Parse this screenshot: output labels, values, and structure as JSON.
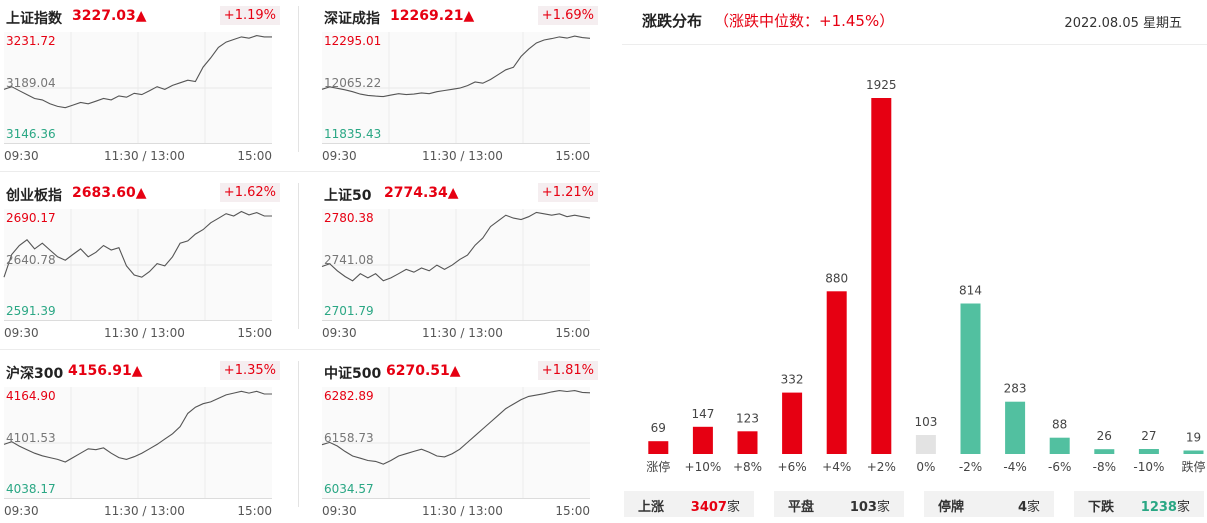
{
  "indices": [
    {
      "name": "上证指数",
      "price": "3227.03▲",
      "change": "+1.19%",
      "high": "3231.72",
      "mid": "3189.04",
      "low": "3146.36",
      "series": [
        3188,
        3190,
        3187,
        3184,
        3181,
        3180,
        3177,
        3175,
        3174,
        3176,
        3178,
        3177,
        3179,
        3181,
        3180,
        3183,
        3182,
        3185,
        3184,
        3187,
        3190,
        3188,
        3191,
        3193,
        3195,
        3194,
        3205,
        3212,
        3220,
        3224,
        3226,
        3228,
        3227,
        3229,
        3228,
        3228
      ]
    },
    {
      "name": "深证成指",
      "price": "12269.21▲",
      "change": "+1.69%",
      "high": "12295.01",
      "mid": "12065.22",
      "low": "11835.43",
      "series": [
        12060,
        12070,
        12064,
        12058,
        12050,
        12040,
        12035,
        12032,
        12030,
        12036,
        12042,
        12038,
        12040,
        12045,
        12042,
        12050,
        12055,
        12060,
        12065,
        12075,
        12090,
        12085,
        12100,
        12120,
        12140,
        12150,
        12195,
        12225,
        12250,
        12262,
        12268,
        12275,
        12270,
        12278,
        12272,
        12269
      ]
    },
    {
      "name": "创业板指",
      "price": "2683.60▲",
      "change": "+1.62%",
      "high": "2690.17",
      "mid": "2640.78",
      "low": "2591.39",
      "series": [
        2630,
        2650,
        2658,
        2663,
        2655,
        2660,
        2654,
        2648,
        2645,
        2650,
        2655,
        2648,
        2652,
        2658,
        2654,
        2656,
        2640,
        2632,
        2630,
        2635,
        2642,
        2640,
        2648,
        2660,
        2662,
        2668,
        2672,
        2678,
        2682,
        2686,
        2684,
        2688,
        2685,
        2687,
        2684,
        2684
      ]
    },
    {
      "name": "上证50",
      "price": "2774.34▲",
      "change": "+1.21%",
      "high": "2780.38",
      "mid": "2741.08",
      "low": "2701.79",
      "series": [
        2740,
        2742,
        2737,
        2733,
        2730,
        2735,
        2732,
        2735,
        2730,
        2732,
        2735,
        2738,
        2736,
        2739,
        2737,
        2741,
        2738,
        2741,
        2745,
        2748,
        2755,
        2760,
        2768,
        2772,
        2776,
        2774,
        2773,
        2775,
        2778,
        2777,
        2776,
        2777,
        2775,
        2776,
        2775,
        2774
      ]
    },
    {
      "name": "沪深300",
      "price": "4156.91▲",
      "change": "+1.35%",
      "high": "4164.90",
      "mid": "4101.53",
      "low": "4038.17",
      "series": [
        4100,
        4103,
        4098,
        4094,
        4090,
        4087,
        4085,
        4083,
        4080,
        4085,
        4090,
        4095,
        4094,
        4096,
        4090,
        4085,
        4083,
        4086,
        4090,
        4095,
        4100,
        4106,
        4112,
        4120,
        4135,
        4142,
        4146,
        4148,
        4152,
        4156,
        4158,
        4160,
        4158,
        4160,
        4157,
        4157
      ]
    },
    {
      "name": "中证500",
      "price": "6270.51▲",
      "change": "+1.81%",
      "high": "6282.89",
      "mid": "6158.73",
      "low": "6034.57",
      "series": [
        6155,
        6160,
        6152,
        6140,
        6130,
        6125,
        6120,
        6118,
        6112,
        6120,
        6130,
        6135,
        6140,
        6145,
        6138,
        6130,
        6128,
        6135,
        6145,
        6160,
        6175,
        6190,
        6205,
        6220,
        6235,
        6245,
        6255,
        6262,
        6265,
        6268,
        6272,
        6275,
        6273,
        6275,
        6271,
        6270
      ]
    }
  ],
  "times": [
    "09:30",
    "11:30 / 13:00",
    "15:00"
  ],
  "distribution": {
    "title": "涨跌分布",
    "median": "（涨跌中位数：+1.45%）",
    "date": "2022.08.05 星期五"
  },
  "chart_data": {
    "type": "bar",
    "categories": [
      "涨停",
      "+10%",
      "+8%",
      "+6%",
      "+4%",
      "+2%",
      "0%",
      "-2%",
      "-4%",
      "-6%",
      "-8%",
      "-10%",
      "跌停"
    ],
    "values": [
      69,
      147,
      123,
      332,
      880,
      1925,
      103,
      814,
      283,
      88,
      26,
      27,
      19
    ],
    "colors": [
      "#e60012",
      "#e60012",
      "#e60012",
      "#e60012",
      "#e60012",
      "#e60012",
      "#e3e3e3",
      "#52c0a0",
      "#52c0a0",
      "#52c0a0",
      "#52c0a0",
      "#52c0a0",
      "#52c0a0"
    ],
    "ylim": [
      0,
      1925
    ]
  },
  "summary": [
    {
      "label": "上涨",
      "value": "3407",
      "unit": "家",
      "color": "#e60012"
    },
    {
      "label": "平盘",
      "value": "103",
      "unit": "家",
      "color": "#333333"
    },
    {
      "label": "停牌",
      "value": "4",
      "unit": "家",
      "color": "#333333"
    },
    {
      "label": "下跌",
      "value": "1238",
      "unit": "家",
      "color": "#2aa784"
    }
  ]
}
